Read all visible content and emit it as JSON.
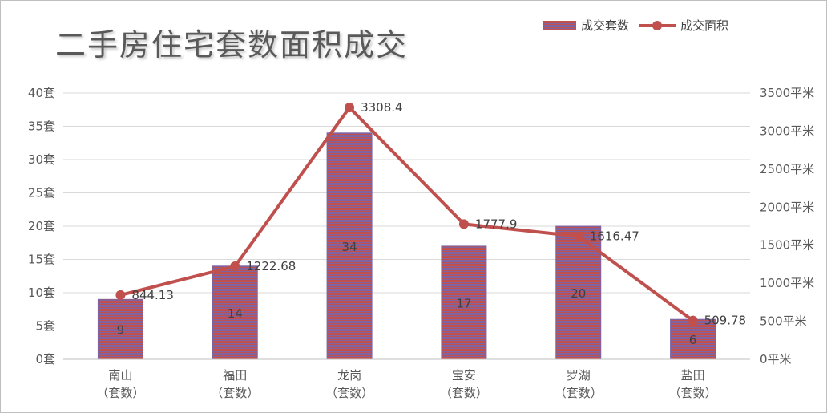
{
  "chart_data": {
    "type": "bar",
    "title": "二手房住宅套数面积成交",
    "categories": [
      "南山\n（套数）",
      "福田\n（套数）",
      "龙岗\n（套数）",
      "宝安\n（套数）",
      "罗湖\n（套数）",
      "盐田\n（套数）"
    ],
    "series": [
      {
        "name": "成交套数",
        "type": "bar",
        "axis": "left",
        "values": [
          9,
          14,
          34,
          17,
          20,
          6
        ],
        "labels": [
          "9",
          "14",
          "34",
          "17",
          "20",
          "6"
        ]
      },
      {
        "name": "成交面积",
        "type": "line",
        "axis": "right",
        "values": [
          844.13,
          1222.68,
          3308.4,
          1777.9,
          1616.47,
          509.78
        ],
        "labels": [
          "844.13",
          "1222.68",
          "3308.4",
          "1777.9",
          "1616.47",
          "509.78"
        ]
      }
    ],
    "y_left": {
      "ylim": [
        0,
        40
      ],
      "ticks": [
        0,
        5,
        10,
        15,
        20,
        25,
        30,
        35,
        40
      ],
      "tick_labels": [
        "0套",
        "5套",
        "10套",
        "15套",
        "20套",
        "25套",
        "30套",
        "35套",
        "40套"
      ]
    },
    "y_right": {
      "ylim": [
        0,
        3500
      ],
      "ticks": [
        0,
        500,
        1000,
        1500,
        2000,
        2500,
        3000,
        3500
      ],
      "tick_labels": [
        "0平米",
        "500平米",
        "1000平米",
        "1500平米",
        "2000平米",
        "2500平米",
        "3000平米",
        "3500平米"
      ]
    },
    "grid": true,
    "legend_position": "top-right",
    "colors": {
      "bar_primary": "#c0504d",
      "bar_stripe": "#8064a2",
      "line": "#c0504d",
      "grid": "#d9d9d9",
      "text": "#595959"
    }
  }
}
